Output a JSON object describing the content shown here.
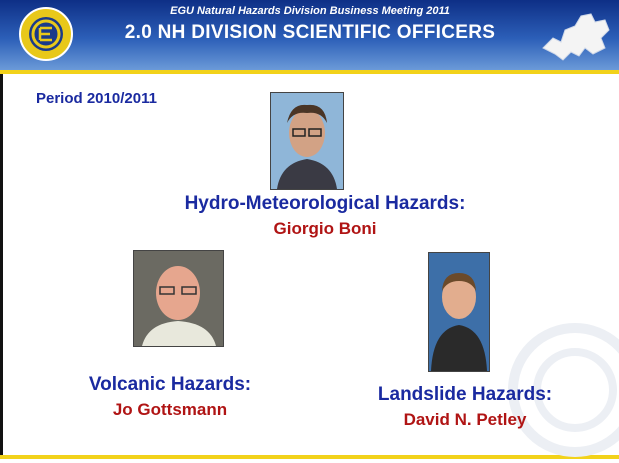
{
  "header": {
    "subtitle": "EGU Natural Hazards Division Business Meeting 2011",
    "title": "2.0 NH DIVISION SCIENTIFIC OFFICERS"
  },
  "period": "Period 2010/2011",
  "officers": [
    {
      "role": "Hydro-Meteorological Hazards:",
      "name": "Giorgio Boni"
    },
    {
      "role": "Volcanic Hazards:",
      "name": "Jo Gottsmann"
    },
    {
      "role": "Landslide Hazards:",
      "name": "David N. Petley"
    }
  ]
}
